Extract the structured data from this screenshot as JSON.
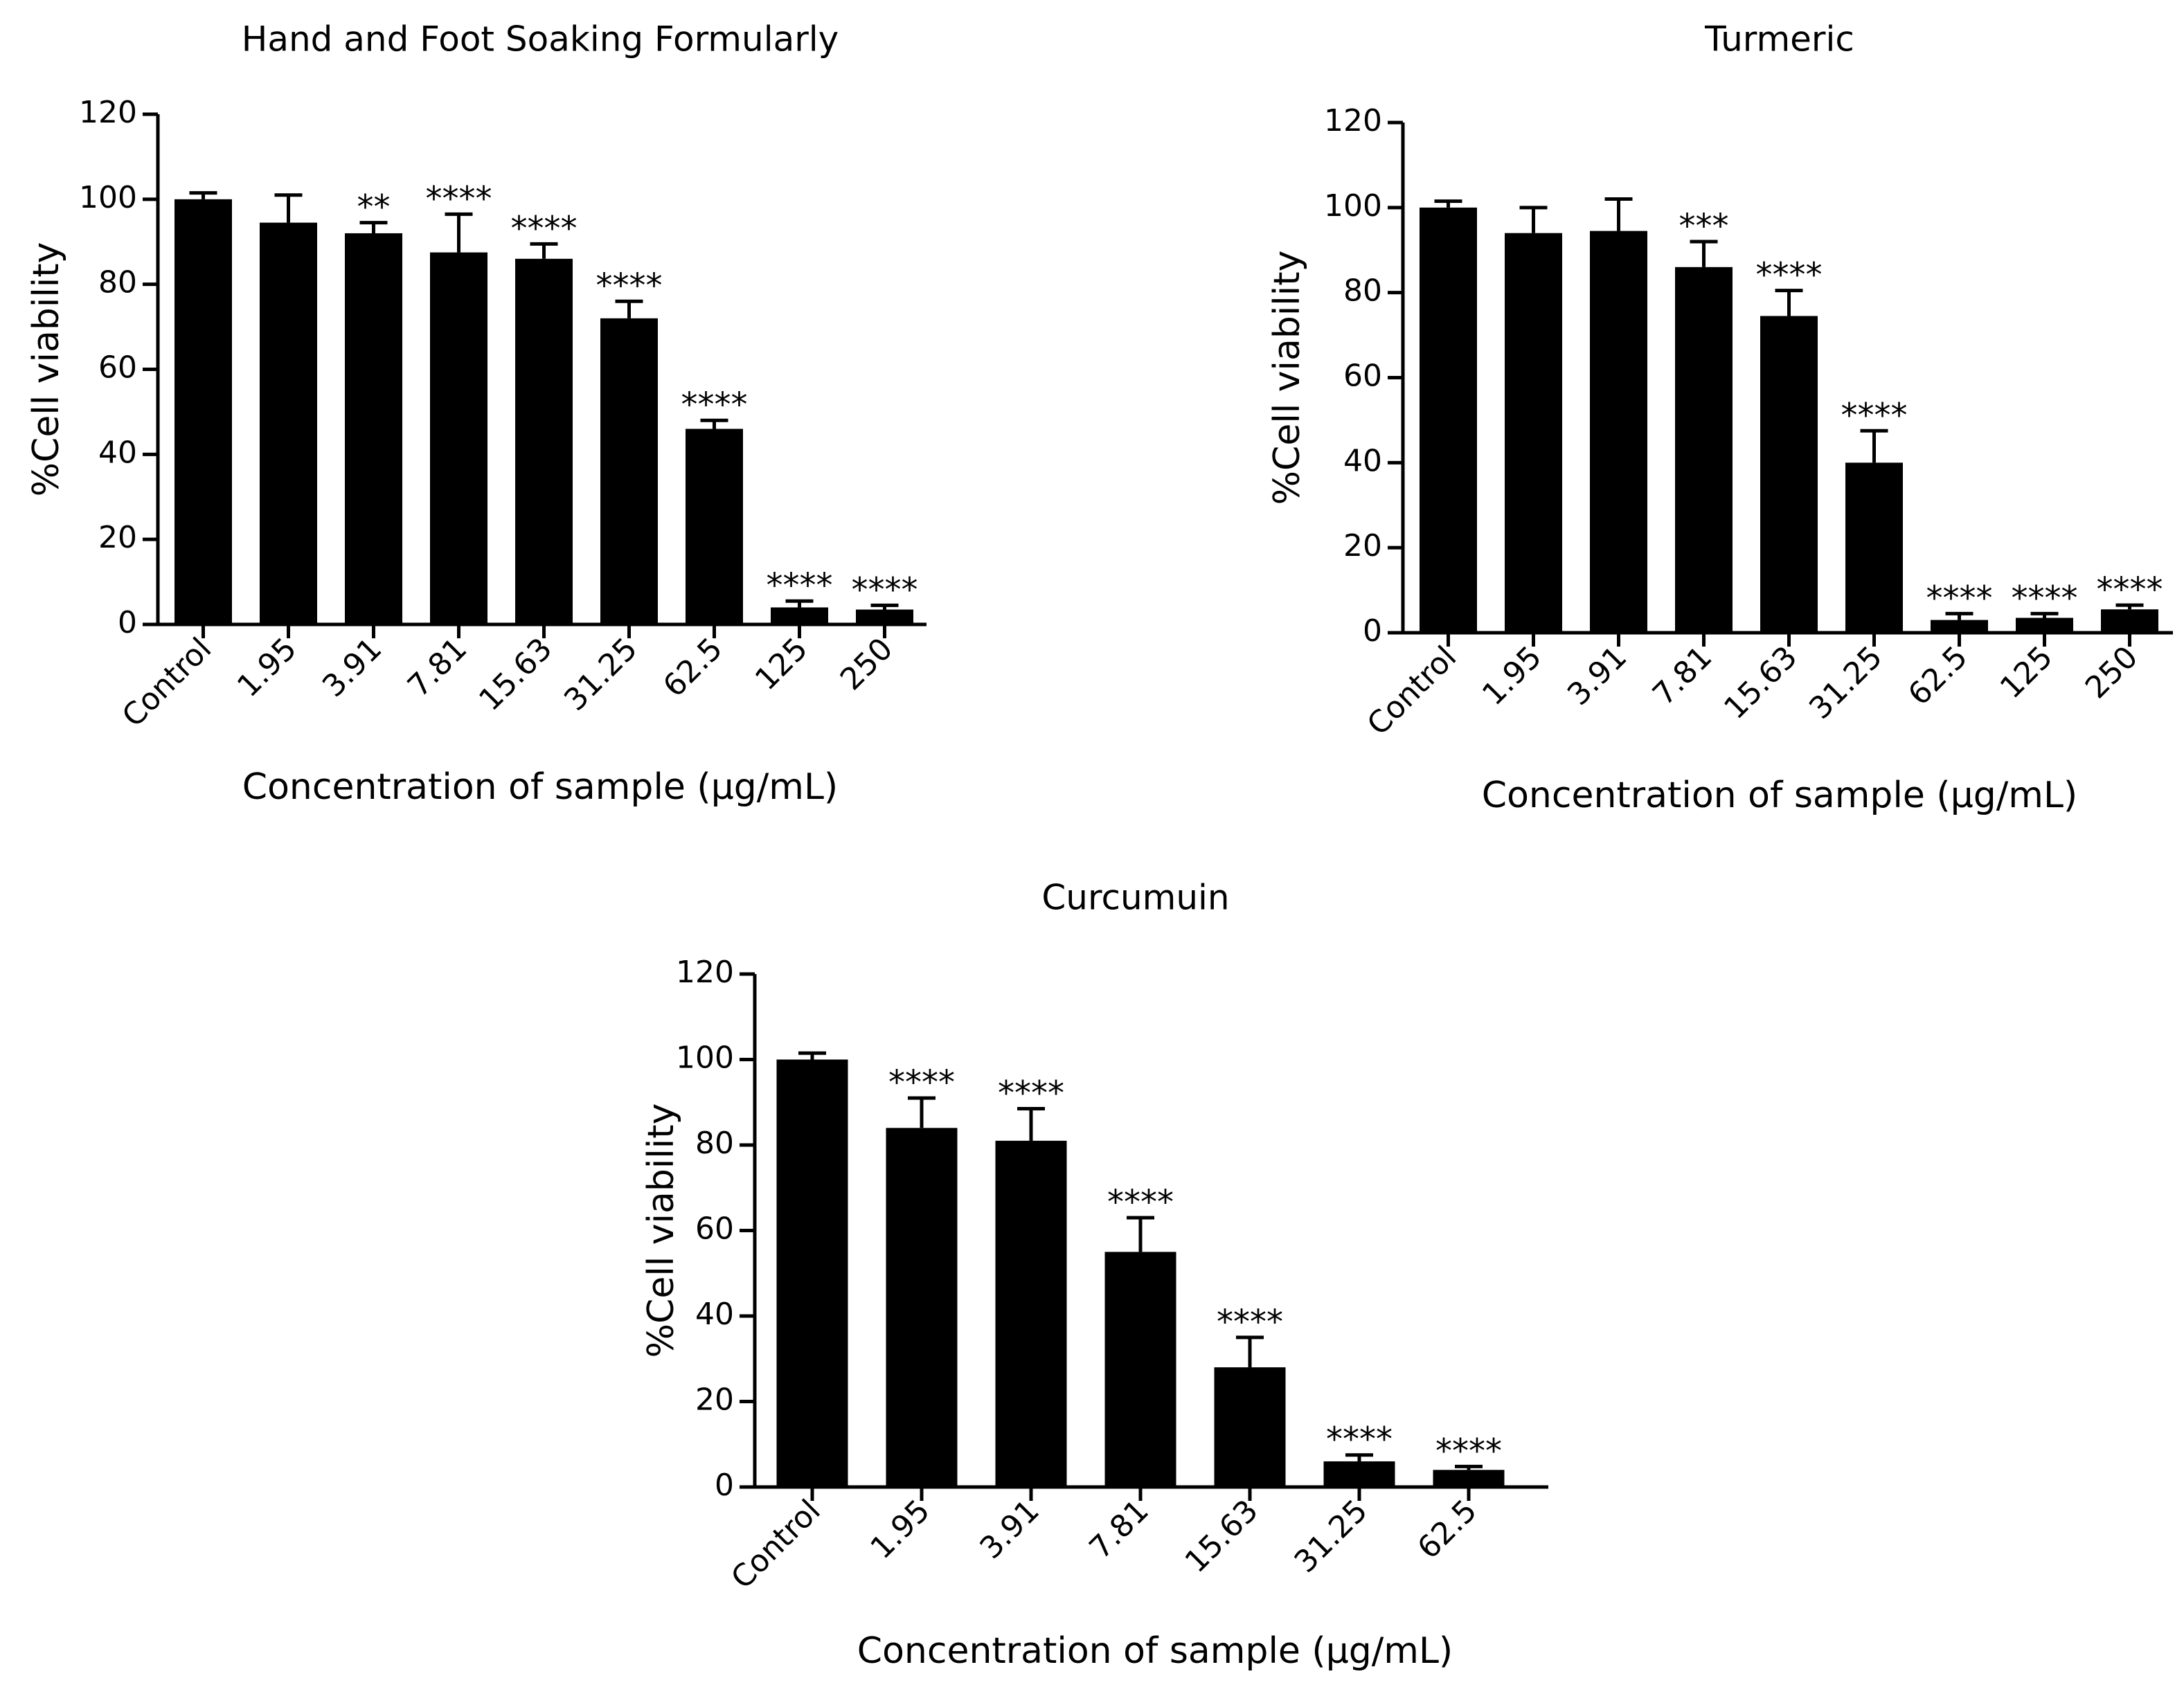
{
  "colors": {
    "bar": "#000000",
    "axis": "#000000",
    "background": "#ffffff"
  },
  "chart_data": [
    {
      "type": "bar",
      "title": "Hand and Foot Soaking Formularly",
      "xlabel": "Concentration of sample (μg/mL)",
      "ylabel": "%Cell viability",
      "ylim": [
        0,
        120
      ],
      "yticks": [
        "0",
        "20",
        "40",
        "60",
        "80",
        "100",
        "120"
      ],
      "categories": [
        "Control",
        "1.95",
        "3.91",
        "7.81",
        "15.63",
        "31.25",
        "62.5",
        "125",
        "250"
      ],
      "values": [
        100,
        94.5,
        92,
        87.5,
        86,
        72,
        46,
        4,
        3.5
      ],
      "errors": [
        1.5,
        6.5,
        2.5,
        9,
        3.5,
        4,
        2,
        1.5,
        1
      ],
      "significance": [
        "",
        "",
        "**",
        "****",
        "****",
        "****",
        "****",
        "****",
        "****"
      ]
    },
    {
      "type": "bar",
      "title": "Turmeric",
      "xlabel": "Concentration of sample (μg/mL)",
      "ylabel": "%Cell viability",
      "ylim": [
        0,
        120
      ],
      "yticks": [
        "0",
        "20",
        "40",
        "60",
        "80",
        "100",
        "120"
      ],
      "categories": [
        "Control",
        "1.95",
        "3.91",
        "7.81",
        "15.63",
        "31.25",
        "62.5",
        "125",
        "250"
      ],
      "values": [
        100,
        94,
        94.5,
        86,
        74.5,
        40,
        3,
        3.5,
        5.5
      ],
      "errors": [
        1.5,
        6,
        7.5,
        6,
        6,
        7.5,
        1.5,
        1,
        1
      ],
      "significance": [
        "",
        "",
        "",
        "***",
        "****",
        "****",
        "****",
        "****",
        "****"
      ]
    },
    {
      "type": "bar",
      "title": "Curcumuin",
      "xlabel": "Concentration of sample (μg/mL)",
      "ylabel": "%Cell viability",
      "ylim": [
        0,
        120
      ],
      "yticks": [
        "0",
        "20",
        "40",
        "60",
        "80",
        "100",
        "120"
      ],
      "categories": [
        "Control",
        "1.95",
        "3.91",
        "7.81",
        "15.63",
        "31.25",
        "62.5"
      ],
      "values": [
        100,
        84,
        81,
        55,
        28,
        6,
        4
      ],
      "errors": [
        1.5,
        7,
        7.5,
        8,
        7,
        1.5,
        0.8
      ],
      "significance": [
        "",
        "****",
        "****",
        "****",
        "****",
        "****",
        "****"
      ]
    }
  ]
}
